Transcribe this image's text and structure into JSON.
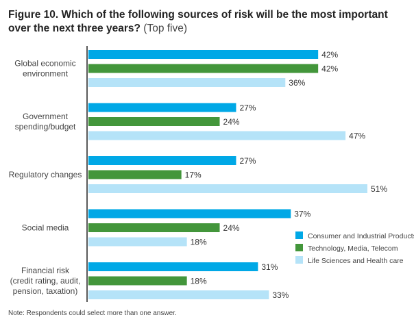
{
  "title": "Figure 10. Which of the following sources of risk will be the most important over the next three years?",
  "subtitle": "(Top five)",
  "note": "Note: Respondents could select more than one answer.",
  "chart_data": {
    "type": "bar",
    "orientation": "horizontal",
    "categories": [
      [
        "Global economic",
        "environment"
      ],
      [
        "Government",
        "spending/budget"
      ],
      [
        "Regulatory changes"
      ],
      [
        "Social media"
      ],
      [
        "Financial risk",
        "(credit rating, audit,",
        "pension, taxation)"
      ]
    ],
    "series": [
      {
        "name": "Consumer and Industrial Products",
        "color": "#00a8e6",
        "values": [
          42,
          27,
          27,
          37,
          31
        ]
      },
      {
        "name": "Technology, Media, Telecom",
        "color": "#43963b",
        "values": [
          42,
          24,
          17,
          24,
          18
        ]
      },
      {
        "name": "Life Sciences and Health care",
        "color": "#b5e3f8",
        "values": [
          36,
          47,
          51,
          18,
          33
        ]
      }
    ],
    "value_suffix": "%",
    "xlim": [
      0,
      60
    ],
    "grid": false,
    "legend": "right"
  }
}
